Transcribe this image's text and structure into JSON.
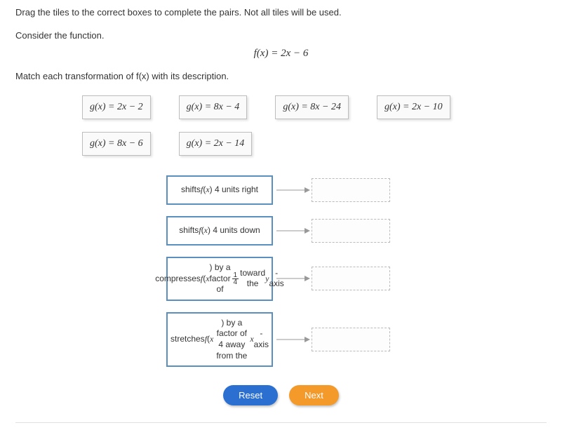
{
  "instruction": "Drag the tiles to the correct boxes to complete the pairs. Not all tiles will be used.",
  "consider": "Consider the function.",
  "formula": "f(x)  =  2x − 6",
  "match_text": "Match each transformation of f(x) with its description.",
  "tiles": {
    "row1": [
      "g(x)  =  2x − 2",
      "g(x)  =  8x − 4",
      "g(x)  =  8x − 24",
      "g(x)  =  2x − 10"
    ],
    "row2": [
      "g(x)  =  8x − 6",
      "g(x)  =  2x − 14"
    ]
  },
  "pairs": [
    {
      "desc_html": "shifts <span class='ital'>f</span>(<span class='ital'>x</span>) 4 units right"
    },
    {
      "desc_html": "shifts <span class='ital'>f</span>(<span class='ital'>x</span>) 4 units down"
    },
    {
      "desc_html": "compresses <span class='ital'>f</span>(<span class='ital'>x</span>) by a factor of <span class='frac'><span class='top'>1</span><span class='bot'>4</span></span> toward the <span class='ital'>y</span>-axis"
    },
    {
      "desc_html": "stretches <span class='ital'>f</span>(<span class='ital'>x</span>) by a factor of 4 away from the <span class='ital'>x</span>-axis"
    }
  ],
  "buttons": {
    "reset": "Reset",
    "next": "Next"
  },
  "colors": {
    "desc_border": "#5a8fbf",
    "reset_bg": "#2b6fd1",
    "next_bg": "#f39a2b"
  }
}
